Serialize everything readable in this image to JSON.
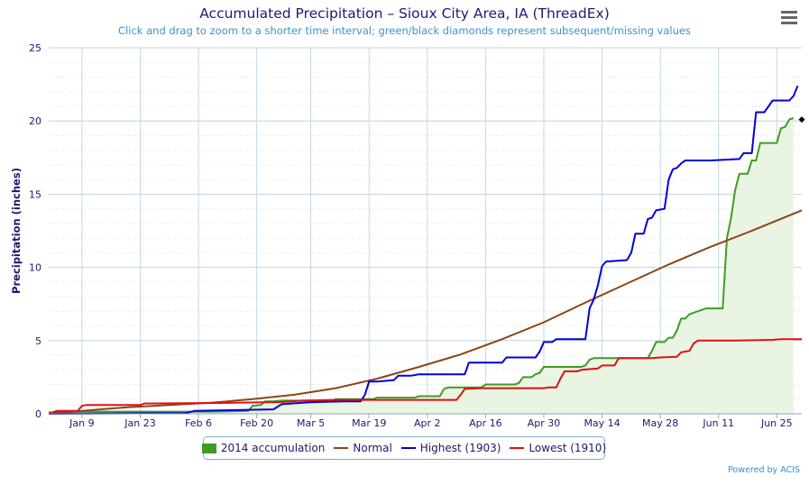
{
  "chart_data": {
    "type": "line",
    "title": "Accumulated Precipitation – Sioux City Area, IA (ThreadEx)",
    "subtitle": "Click and drag to zoom to a shorter time interval; green/black diamonds represent subsequent/missing values",
    "ylabel": "Precipitation (inches)",
    "xlabel": "",
    "ylim": [
      0,
      25
    ],
    "yticks": [
      0,
      5,
      10,
      15,
      20,
      25
    ],
    "xlim": [
      1,
      182
    ],
    "xticks": [
      {
        "day": 9,
        "label": "Jan 9"
      },
      {
        "day": 23,
        "label": "Jan 23"
      },
      {
        "day": 37,
        "label": "Feb 6"
      },
      {
        "day": 51,
        "label": "Feb 20"
      },
      {
        "day": 64,
        "label": "Mar 5"
      },
      {
        "day": 78,
        "label": "Mar 19"
      },
      {
        "day": 92,
        "label": "Apr 2"
      },
      {
        "day": 106,
        "label": "Apr 16"
      },
      {
        "day": 120,
        "label": "Apr 30"
      },
      {
        "day": 134,
        "label": "May 14"
      },
      {
        "day": 148,
        "label": "May 28"
      },
      {
        "day": 162,
        "label": "Jun 11"
      },
      {
        "day": 176,
        "label": "Jun 25"
      }
    ],
    "grid": true,
    "legend_position": "bottom-center",
    "series": [
      {
        "name": "2014 accumulation",
        "type": "area",
        "color": "#3f9b25",
        "fill": "#e9f4e3",
        "points": [
          [
            1,
            0.1
          ],
          [
            3,
            0.1
          ],
          [
            4,
            0.15
          ],
          [
            40,
            0.15
          ],
          [
            49,
            0.2
          ],
          [
            50,
            0.55
          ],
          [
            52,
            0.6
          ],
          [
            53,
            0.85
          ],
          [
            55,
            0.85
          ],
          [
            57,
            0.9
          ],
          [
            69,
            0.9
          ],
          [
            70,
            1.0
          ],
          [
            79,
            1.0
          ],
          [
            80,
            1.1
          ],
          [
            89,
            1.1
          ],
          [
            90,
            1.2
          ],
          [
            95,
            1.2
          ],
          [
            96,
            1.7
          ],
          [
            97,
            1.8
          ],
          [
            105,
            1.8
          ],
          [
            106,
            2.0
          ],
          [
            113,
            2.0
          ],
          [
            114,
            2.1
          ],
          [
            115,
            2.5
          ],
          [
            117,
            2.5
          ],
          [
            118,
            2.7
          ],
          [
            119,
            2.8
          ],
          [
            120,
            3.2
          ],
          [
            129,
            3.2
          ],
          [
            130,
            3.3
          ],
          [
            131,
            3.7
          ],
          [
            132,
            3.8
          ],
          [
            145,
            3.8
          ],
          [
            146,
            4.3
          ],
          [
            147,
            4.9
          ],
          [
            149,
            4.9
          ],
          [
            150,
            5.2
          ],
          [
            151,
            5.2
          ],
          [
            152,
            5.7
          ],
          [
            153,
            6.5
          ],
          [
            154,
            6.5
          ],
          [
            155,
            6.8
          ],
          [
            157,
            7.0
          ],
          [
            158,
            7.1
          ],
          [
            159,
            7.2
          ],
          [
            163,
            7.2
          ],
          [
            164,
            12.0
          ],
          [
            165,
            13.4
          ],
          [
            166,
            15.3
          ],
          [
            167,
            16.4
          ],
          [
            169,
            16.4
          ],
          [
            170,
            17.3
          ],
          [
            171,
            17.3
          ],
          [
            172,
            18.5
          ],
          [
            176,
            18.5
          ],
          [
            177,
            19.5
          ],
          [
            178,
            19.6
          ],
          [
            179,
            20.1
          ],
          [
            180,
            20.2
          ]
        ]
      },
      {
        "name": "Normal",
        "type": "line",
        "color": "#8b4513",
        "points": [
          [
            1,
            0.0
          ],
          [
            10,
            0.22
          ],
          [
            20,
            0.45
          ],
          [
            30,
            0.6
          ],
          [
            40,
            0.75
          ],
          [
            50,
            1.0
          ],
          [
            60,
            1.3
          ],
          [
            70,
            1.75
          ],
          [
            80,
            2.4
          ],
          [
            90,
            3.2
          ],
          [
            100,
            4.05
          ],
          [
            110,
            5.1
          ],
          [
            120,
            6.25
          ],
          [
            130,
            7.6
          ],
          [
            140,
            8.9
          ],
          [
            150,
            10.2
          ],
          [
            160,
            11.4
          ],
          [
            170,
            12.5
          ],
          [
            182,
            13.9
          ]
        ]
      },
      {
        "name": "Highest (1903)",
        "type": "line",
        "color": "#0000dd",
        "points": [
          [
            1,
            0.0
          ],
          [
            34,
            0.05
          ],
          [
            36,
            0.2
          ],
          [
            55,
            0.3
          ],
          [
            57,
            0.65
          ],
          [
            62,
            0.75
          ],
          [
            65,
            0.8
          ],
          [
            72,
            0.85
          ],
          [
            76,
            0.85
          ],
          [
            77,
            1.3
          ],
          [
            78,
            2.2
          ],
          [
            80,
            2.2
          ],
          [
            84,
            2.3
          ],
          [
            85,
            2.6
          ],
          [
            88,
            2.6
          ],
          [
            90,
            2.7
          ],
          [
            101,
            2.7
          ],
          [
            102,
            3.5
          ],
          [
            110,
            3.5
          ],
          [
            111,
            3.85
          ],
          [
            118,
            3.85
          ],
          [
            119,
            4.25
          ],
          [
            120,
            4.9
          ],
          [
            122,
            4.9
          ],
          [
            123,
            5.1
          ],
          [
            130,
            5.1
          ],
          [
            131,
            7.2
          ],
          [
            132,
            7.8
          ],
          [
            133,
            8.8
          ],
          [
            134,
            10.1
          ],
          [
            135,
            10.4
          ],
          [
            140,
            10.5
          ],
          [
            141,
            11.0
          ],
          [
            142,
            12.3
          ],
          [
            144,
            12.3
          ],
          [
            145,
            13.3
          ],
          [
            146,
            13.4
          ],
          [
            147,
            13.9
          ],
          [
            149,
            14.0
          ],
          [
            150,
            16.0
          ],
          [
            151,
            16.7
          ],
          [
            152,
            16.8
          ],
          [
            153,
            17.1
          ],
          [
            154,
            17.3
          ],
          [
            160,
            17.3
          ],
          [
            167,
            17.4
          ],
          [
            168,
            17.8
          ],
          [
            170,
            17.8
          ],
          [
            171,
            20.6
          ],
          [
            173,
            20.6
          ],
          [
            174,
            21.0
          ],
          [
            175,
            21.4
          ],
          [
            179,
            21.4
          ],
          [
            180,
            21.7
          ],
          [
            181,
            22.4
          ]
        ]
      },
      {
        "name": "Lowest (1910)",
        "type": "line",
        "color": "#e01010",
        "points": [
          [
            1,
            0.0
          ],
          [
            3,
            0.2
          ],
          [
            8,
            0.2
          ],
          [
            9,
            0.55
          ],
          [
            10,
            0.6
          ],
          [
            23,
            0.6
          ],
          [
            24,
            0.7
          ],
          [
            45,
            0.75
          ],
          [
            57,
            0.8
          ],
          [
            62,
            0.9
          ],
          [
            70,
            0.95
          ],
          [
            79,
            0.95
          ],
          [
            80,
            0.95
          ],
          [
            99,
            0.95
          ],
          [
            100,
            1.3
          ],
          [
            101,
            1.7
          ],
          [
            105,
            1.75
          ],
          [
            120,
            1.75
          ],
          [
            121,
            1.8
          ],
          [
            123,
            1.8
          ],
          [
            124,
            2.4
          ],
          [
            125,
            2.9
          ],
          [
            128,
            2.9
          ],
          [
            129,
            3.0
          ],
          [
            133,
            3.1
          ],
          [
            134,
            3.3
          ],
          [
            137,
            3.3
          ],
          [
            138,
            3.8
          ],
          [
            146,
            3.8
          ],
          [
            148,
            3.85
          ],
          [
            152,
            3.9
          ],
          [
            153,
            4.2
          ],
          [
            155,
            4.3
          ],
          [
            156,
            4.8
          ],
          [
            157,
            5.0
          ],
          [
            166,
            5.0
          ],
          [
            175,
            5.05
          ],
          [
            177,
            5.1
          ],
          [
            182,
            5.1
          ]
        ]
      }
    ],
    "markers": [
      {
        "series": "2014 accumulation",
        "x": 182,
        "y": 20.1,
        "shape": "diamond",
        "color": "#000000"
      }
    ]
  },
  "ui": {
    "menu_icon": "hamburger-menu-icon",
    "credits": "Powered by ACIS"
  }
}
